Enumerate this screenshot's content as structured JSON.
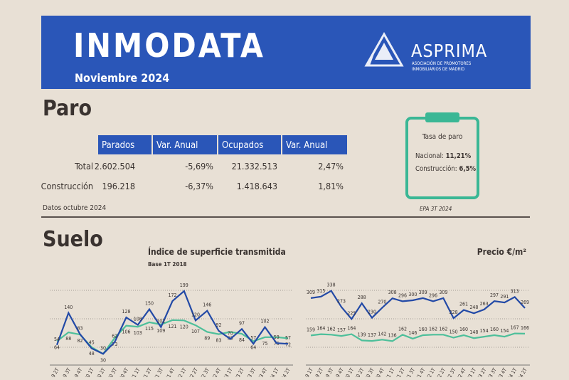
{
  "header": {
    "title": "INMODATA",
    "date": "Noviembre 2024",
    "logo": {
      "name": "ASPRIMA",
      "line1": "ASOCIACIÓN DE PROMOTORES",
      "line2": "INMOBILIARIOS DE MADRID"
    }
  },
  "paro": {
    "heading": "Paro",
    "table": {
      "columns": [
        "Parados",
        "Var. Anual",
        "Ocupados",
        "Var. Anual"
      ],
      "rows": [
        [
          "Total",
          "2.602.504",
          "-5,69%",
          "21.332.513",
          "2,47%"
        ],
        [
          "Construcción",
          "196.218",
          "-6,37%",
          "1.418.643",
          "1,81%"
        ]
      ]
    },
    "note": "Datos octubre 2024",
    "tasa": {
      "title": "Tasa de paro",
      "lines": [
        {
          "label": "Nacional:",
          "value": "11,21%"
        },
        {
          "label": "Construcción:",
          "value": "6,5%"
        }
      ],
      "source": "EPA 3T 2024"
    }
  },
  "suelo": {
    "heading": "Suelo"
  },
  "chart_data": [
    {
      "type": "line",
      "title": "Índice de superficie transmitida",
      "subtitle": "Base 1T 2018",
      "categories": [
        "2019 2T",
        "2019 3T",
        "2019 4T",
        "2020 1T",
        "2020 2T",
        "2020 3T",
        "2020 4T",
        "2021 1T",
        "2021 2T",
        "2021 3T",
        "2021 4T",
        "2022 1T",
        "2022 2T",
        "2022 3T",
        "2022 4T",
        "2023 1T",
        "2023 2T",
        "2023 3T",
        "2023 4T",
        "2024 1T",
        "2024 2T"
      ],
      "series": [
        {
          "color": "#2249a6",
          "values": [
            54,
            140,
            83,
            45,
            30,
            62,
            128,
            108,
            150,
            102,
            172,
            199,
            120,
            146,
            92,
            70,
            97,
            57,
            102,
            59,
            57
          ]
        },
        {
          "color": "#4dbf9a",
          "values": [
            64,
            88,
            82,
            48,
            30,
            73,
            106,
            103,
            115,
            109,
            121,
            120,
            107,
            89,
            83,
            89,
            84,
            64,
            75,
            75,
            72
          ]
        }
      ],
      "ylim": [
        0,
        220
      ]
    },
    {
      "type": "line",
      "title": "Precio €/m²",
      "categories": [
        "2019 1T",
        "2019 2T",
        "2019 3T",
        "2019 4T",
        "2020 1T",
        "2020 2T",
        "2020 3T",
        "2020 4T",
        "2021 1T",
        "2021 2T",
        "2021 3T",
        "2021 4T",
        "2022 1T",
        "2022 2T",
        "2022 3T",
        "2022 4T",
        "2023 1T",
        "2023 2T",
        "2023 3T",
        "2023 4T",
        "2024 1T",
        "2024 2T"
      ],
      "series": [
        {
          "color": "#2249a6",
          "values": [
            309,
            315,
            338,
            273,
            225,
            288,
            230,
            270,
            308,
            296,
            300,
            309,
            296,
            309,
            228,
            261,
            248,
            263,
            297,
            291,
            313,
            269
          ]
        },
        {
          "color": "#4dbf9a",
          "values": [
            159,
            164,
            162,
            157,
            164,
            139,
            137,
            142,
            136,
            162,
            146,
            160,
            162,
            162,
            150,
            160,
            148,
            154,
            160,
            154,
            167,
            166
          ]
        }
      ],
      "ylim": [
        40,
        340
      ]
    }
  ]
}
